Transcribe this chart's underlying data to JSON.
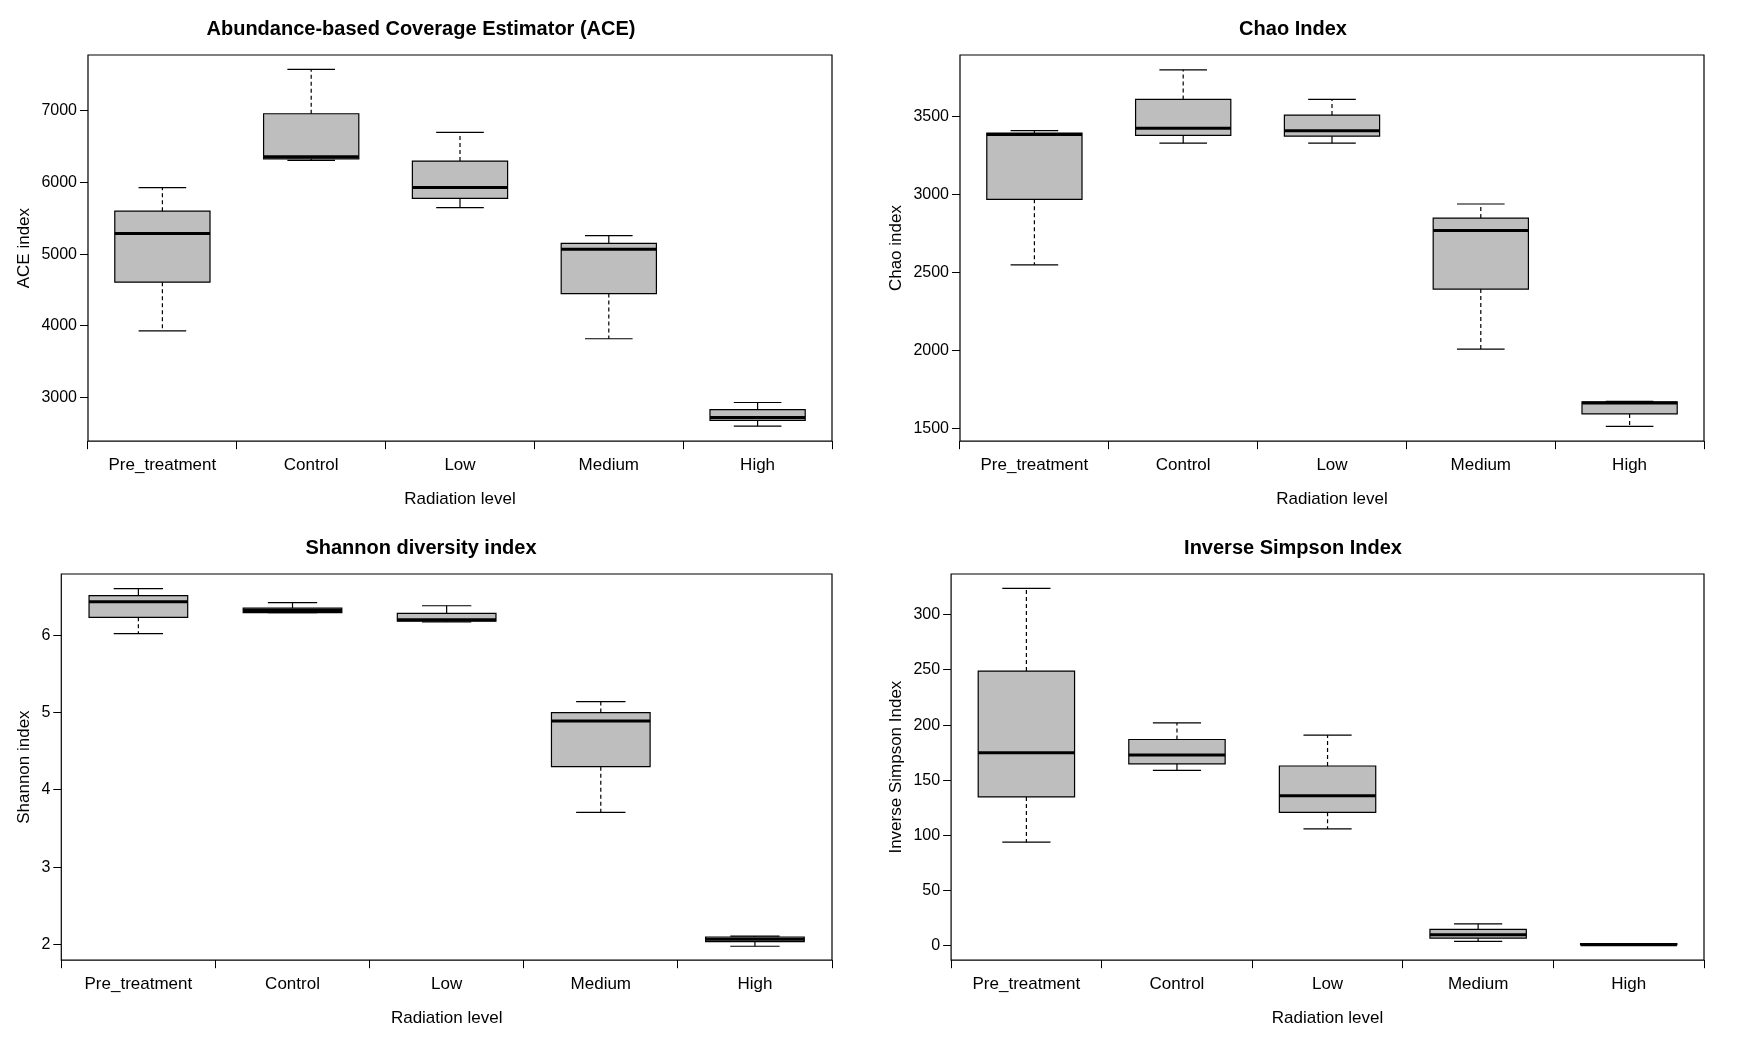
{
  "chart_data": [
    {
      "type": "box",
      "title": "Abundance-based Coverage Estimator (ACE)",
      "xlabel": "Radiation level",
      "ylabel": "ACE index",
      "color": "#bebebe",
      "categories": [
        "Pre_treatment",
        "Control",
        "Low",
        "Medium",
        "High"
      ],
      "ylim": [
        2390,
        7780
      ],
      "yticks": [
        3000,
        4000,
        5000,
        6000,
        7000
      ],
      "boxes": [
        {
          "low": 3930,
          "q1": 4610,
          "median": 5290,
          "q3": 5600,
          "high": 5930
        },
        {
          "low": 6310,
          "q1": 6330,
          "median": 6360,
          "q3": 6960,
          "high": 7580
        },
        {
          "low": 5650,
          "q1": 5780,
          "median": 5930,
          "q3": 6300,
          "high": 6700
        },
        {
          "low": 3820,
          "q1": 4450,
          "median": 5070,
          "q3": 5150,
          "high": 5260
        },
        {
          "low": 2600,
          "q1": 2680,
          "median": 2720,
          "q3": 2830,
          "high": 2930
        }
      ]
    },
    {
      "type": "box",
      "title": "Chao Index",
      "xlabel": "Radiation level",
      "ylabel": "Chao index",
      "color": "#bebebe",
      "categories": [
        "Pre_treatment",
        "Control",
        "Low",
        "Medium",
        "High"
      ],
      "ylim": [
        1420,
        3895
      ],
      "yticks": [
        1500,
        2000,
        2500,
        3000,
        3500
      ],
      "boxes": [
        {
          "low": 2550,
          "q1": 2970,
          "median": 3385,
          "q3": 3395,
          "high": 3410
        },
        {
          "low": 3330,
          "q1": 3380,
          "median": 3425,
          "q3": 3610,
          "high": 3800
        },
        {
          "low": 3330,
          "q1": 3375,
          "median": 3410,
          "q3": 3510,
          "high": 3610
        },
        {
          "low": 2010,
          "q1": 2395,
          "median": 2770,
          "q3": 2850,
          "high": 2940
        },
        {
          "low": 1515,
          "q1": 1595,
          "median": 1665,
          "q3": 1672,
          "high": 1675
        }
      ]
    },
    {
      "type": "box",
      "title": "Shannon diversity index",
      "xlabel": "Radiation level",
      "ylabel": "Shannon index",
      "color": "#bebebe",
      "categories": [
        "Pre_treatment",
        "Control",
        "Low",
        "Medium",
        "High"
      ],
      "ylim": [
        1.8,
        6.79
      ],
      "yticks": [
        2,
        3,
        4,
        5,
        6
      ],
      "boxes": [
        {
          "low": 6.02,
          "q1": 6.23,
          "median": 6.43,
          "q3": 6.51,
          "high": 6.6
        },
        {
          "low": 6.29,
          "q1": 6.29,
          "median": 6.32,
          "q3": 6.35,
          "high": 6.42
        },
        {
          "low": 6.17,
          "q1": 6.18,
          "median": 6.2,
          "q3": 6.28,
          "high": 6.38
        },
        {
          "low": 3.71,
          "q1": 4.3,
          "median": 4.89,
          "q3": 5.0,
          "high": 5.14
        },
        {
          "low": 1.98,
          "q1": 2.04,
          "median": 2.07,
          "q3": 2.1,
          "high": 2.11
        }
      ]
    },
    {
      "type": "box",
      "title": "Inverse Simpson Index",
      "xlabel": "Radiation level",
      "ylabel": "Inverse Simpson Index",
      "color": "#bebebe",
      "categories": [
        "Pre_treatment",
        "Control",
        "Low",
        "Medium",
        "High"
      ],
      "ylim": [
        -13,
        337
      ],
      "yticks": [
        0,
        50,
        100,
        150,
        200,
        250,
        300
      ],
      "boxes": [
        {
          "low": 94,
          "q1": 135,
          "median": 175,
          "q3": 249,
          "high": 324
        },
        {
          "low": 159,
          "q1": 165,
          "median": 173,
          "q3": 187,
          "high": 202
        },
        {
          "low": 106,
          "q1": 121,
          "median": 136,
          "q3": 163,
          "high": 191
        },
        {
          "low": 4,
          "q1": 7,
          "median": 10,
          "q3": 15,
          "high": 20
        },
        {
          "low": 1,
          "q1": 1,
          "median": 1,
          "q3": 2,
          "high": 2
        }
      ]
    }
  ]
}
